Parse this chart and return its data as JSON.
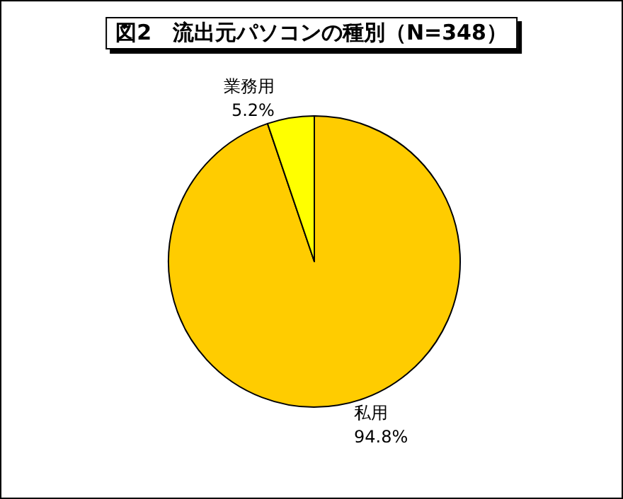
{
  "chart_data": {
    "type": "pie",
    "title": "図2　流出元パソコンの種別（N=348）",
    "categories": [
      "私用",
      "業務用"
    ],
    "values": [
      94.8,
      5.2
    ],
    "colors": [
      "#ffcc00",
      "#ffff00"
    ],
    "value_labels": [
      "94.8%",
      "5.2%"
    ],
    "legend": false
  }
}
